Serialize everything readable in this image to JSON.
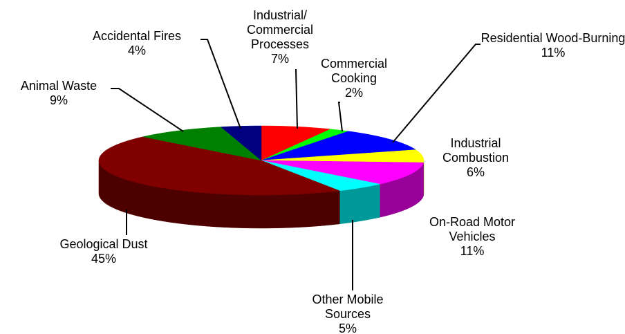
{
  "chart_data": {
    "type": "pie",
    "categories": [
      "Industrial/ Commercial Processes",
      "Commercial Cooking",
      "Residential Wood-Burning",
      "Industrial Combustion",
      "On-Road Motor Vehicles",
      "Other Mobile Sources",
      "Geological Dust",
      "Animal Waste",
      "Accidental Fires"
    ],
    "values": [
      7,
      2,
      11,
      6,
      11,
      5,
      45,
      9,
      4
    ],
    "value_labels": [
      "7%",
      "2%",
      "11%",
      "6%",
      "11%",
      "5%",
      "45%",
      "9%",
      "4%"
    ],
    "colors": [
      "#ff0000",
      "#00ff00",
      "#0000ff",
      "#ffff00",
      "#ff00ff",
      "#00ffff",
      "#800000",
      "#008000",
      "#000080"
    ]
  }
}
